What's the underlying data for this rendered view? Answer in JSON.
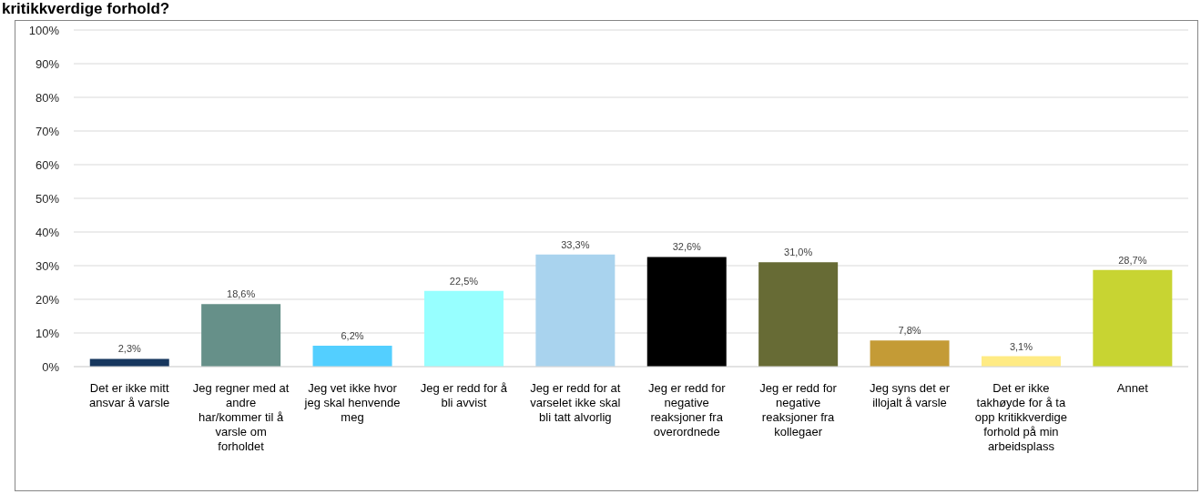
{
  "chart_data": {
    "type": "bar",
    "title": "kritikkverdige forhold?",
    "categories": [
      "Det er ikke mitt ansvar å varsle",
      "Jeg regner med at andre har/kommer til å varsle om forholdet",
      "Jeg vet ikke hvor jeg skal henvende meg",
      "Jeg er redd for å bli avvist",
      "Jeg er redd for at varselet ikke skal bli tatt alvorlig",
      "Jeg er redd for negative reaksjoner fra overordnede",
      "Jeg er redd for negative reaksjoner fra kollegaer",
      "Jeg syns det er illojalt å varsle",
      "Det er ikke takhøyde for å ta opp kritikkverdige forhold på min arbeidsplass",
      "Annet"
    ],
    "values": [
      2.3,
      18.6,
      6.2,
      22.5,
      33.3,
      32.6,
      31.0,
      7.8,
      3.1,
      28.7
    ],
    "colors": [
      "#17375e",
      "#669089",
      "#53cfff",
      "#97ffff",
      "#a9d3ee",
      "#000000",
      "#676b35",
      "#c49b36",
      "#ffeb84",
      "#c8d432"
    ],
    "value_labels": [
      "2,3%",
      "18,6%",
      "6,2%",
      "22,5%",
      "33,3%",
      "32,6%",
      "31,0%",
      "7,8%",
      "3,1%",
      "28,7%"
    ],
    "ylim": [
      0,
      100
    ],
    "yticks": [
      {
        "value": 0,
        "label": "0%"
      },
      {
        "value": 10,
        "label": "10%"
      },
      {
        "value": 20,
        "label": "20%"
      },
      {
        "value": 30,
        "label": "30%"
      },
      {
        "value": 40,
        "label": "40%"
      },
      {
        "value": 50,
        "label": "50%"
      },
      {
        "value": 60,
        "label": "60%"
      },
      {
        "value": 70,
        "label": "70%"
      },
      {
        "value": 80,
        "label": "80%"
      },
      {
        "value": 90,
        "label": "90%"
      },
      {
        "value": 100,
        "label": "100%"
      }
    ],
    "grid": "y"
  }
}
